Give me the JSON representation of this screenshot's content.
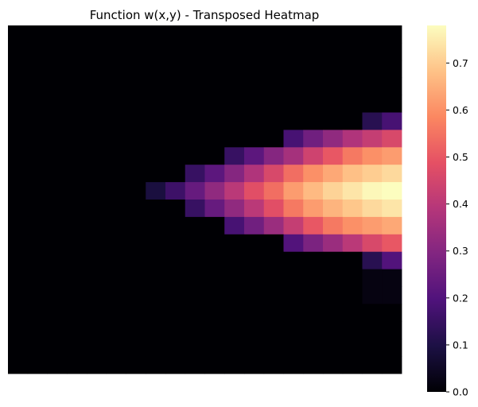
{
  "chart_data": {
    "type": "heatmap",
    "title": "Function w(x,y) - Transposed Heatmap",
    "xlabel": "",
    "ylabel": "",
    "colormap": "magma",
    "vmin": 0.0,
    "vmax": 0.78,
    "grid": false,
    "colorbar": {
      "position": "right",
      "ticks": [
        0.0,
        0.1,
        0.2,
        0.3,
        0.4,
        0.5,
        0.6,
        0.7
      ],
      "tick_labels": [
        "0.0",
        "0.1",
        "0.2",
        "0.3",
        "0.4",
        "0.5",
        "0.6",
        "0.7"
      ]
    },
    "n_rows": 20,
    "n_cols": 20,
    "values": [
      [
        0.0,
        0.0,
        0.0,
        0.0,
        0.0,
        0.0,
        0.0,
        0.0,
        0.0,
        0.0,
        0.0,
        0.0,
        0.0,
        0.0,
        0.0,
        0.0,
        0.0,
        0.0,
        0.0,
        0.0
      ],
      [
        0.0,
        0.0,
        0.0,
        0.0,
        0.0,
        0.0,
        0.0,
        0.0,
        0.0,
        0.0,
        0.0,
        0.0,
        0.0,
        0.0,
        0.0,
        0.0,
        0.0,
        0.0,
        0.0,
        0.0
      ],
      [
        0.0,
        0.0,
        0.0,
        0.0,
        0.0,
        0.0,
        0.0,
        0.0,
        0.0,
        0.0,
        0.0,
        0.0,
        0.0,
        0.0,
        0.0,
        0.0,
        0.0,
        0.0,
        0.0,
        0.0
      ],
      [
        0.0,
        0.0,
        0.0,
        0.0,
        0.0,
        0.0,
        0.0,
        0.0,
        0.0,
        0.0,
        0.0,
        0.0,
        0.0,
        0.0,
        0.0,
        0.0,
        0.0,
        0.0,
        0.0,
        0.0
      ],
      [
        0.0,
        0.0,
        0.0,
        0.0,
        0.0,
        0.0,
        0.0,
        0.0,
        0.0,
        0.0,
        0.0,
        0.0,
        0.0,
        0.0,
        0.0,
        0.0,
        0.0,
        0.0,
        0.0,
        0.0
      ],
      [
        0.0,
        0.0,
        0.0,
        0.0,
        0.0,
        0.0,
        0.0,
        0.0,
        0.0,
        0.0,
        0.0,
        0.0,
        0.0,
        0.0,
        0.0,
        0.0,
        0.0,
        0.0,
        0.12,
        0.18
      ],
      [
        0.0,
        0.0,
        0.0,
        0.0,
        0.0,
        0.0,
        0.0,
        0.0,
        0.0,
        0.0,
        0.0,
        0.0,
        0.0,
        0.0,
        0.18,
        0.26,
        0.32,
        0.38,
        0.42,
        0.46
      ],
      [
        0.0,
        0.0,
        0.0,
        0.0,
        0.0,
        0.0,
        0.0,
        0.0,
        0.0,
        0.0,
        0.0,
        0.15,
        0.22,
        0.3,
        0.36,
        0.44,
        0.5,
        0.56,
        0.6,
        0.62
      ],
      [
        0.0,
        0.0,
        0.0,
        0.0,
        0.0,
        0.0,
        0.0,
        0.0,
        0.0,
        0.15,
        0.22,
        0.3,
        0.38,
        0.46,
        0.54,
        0.6,
        0.64,
        0.68,
        0.7,
        0.72
      ],
      [
        0.0,
        0.0,
        0.0,
        0.0,
        0.0,
        0.0,
        0.0,
        0.09,
        0.16,
        0.24,
        0.32,
        0.4,
        0.48,
        0.54,
        0.62,
        0.67,
        0.71,
        0.74,
        0.77,
        0.78
      ],
      [
        0.0,
        0.0,
        0.0,
        0.0,
        0.0,
        0.0,
        0.0,
        0.0,
        0.0,
        0.15,
        0.24,
        0.32,
        0.4,
        0.48,
        0.56,
        0.62,
        0.66,
        0.69,
        0.72,
        0.74
      ],
      [
        0.0,
        0.0,
        0.0,
        0.0,
        0.0,
        0.0,
        0.0,
        0.0,
        0.0,
        0.0,
        0.0,
        0.18,
        0.26,
        0.34,
        0.42,
        0.5,
        0.56,
        0.6,
        0.62,
        0.64
      ],
      [
        0.0,
        0.0,
        0.0,
        0.0,
        0.0,
        0.0,
        0.0,
        0.0,
        0.0,
        0.0,
        0.0,
        0.0,
        0.0,
        0.0,
        0.2,
        0.28,
        0.34,
        0.4,
        0.46,
        0.5
      ],
      [
        0.0,
        0.0,
        0.0,
        0.0,
        0.0,
        0.0,
        0.0,
        0.0,
        0.0,
        0.0,
        0.0,
        0.0,
        0.0,
        0.0,
        0.0,
        0.0,
        0.0,
        0.0,
        0.12,
        0.2
      ],
      [
        0.0,
        0.0,
        0.0,
        0.0,
        0.0,
        0.0,
        0.0,
        0.0,
        0.0,
        0.0,
        0.0,
        0.0,
        0.0,
        0.0,
        0.0,
        0.0,
        0.0,
        0.0,
        0.02,
        0.02
      ],
      [
        0.0,
        0.0,
        0.0,
        0.0,
        0.0,
        0.0,
        0.0,
        0.0,
        0.0,
        0.0,
        0.0,
        0.0,
        0.0,
        0.0,
        0.0,
        0.0,
        0.0,
        0.0,
        0.02,
        0.02
      ],
      [
        0.0,
        0.0,
        0.0,
        0.0,
        0.0,
        0.0,
        0.0,
        0.0,
        0.0,
        0.0,
        0.0,
        0.0,
        0.0,
        0.0,
        0.0,
        0.0,
        0.0,
        0.0,
        0.0,
        0.0
      ],
      [
        0.0,
        0.0,
        0.0,
        0.0,
        0.0,
        0.0,
        0.0,
        0.0,
        0.0,
        0.0,
        0.0,
        0.0,
        0.0,
        0.0,
        0.0,
        0.0,
        0.0,
        0.0,
        0.0,
        0.0
      ],
      [
        0.0,
        0.0,
        0.0,
        0.0,
        0.0,
        0.0,
        0.0,
        0.0,
        0.0,
        0.0,
        0.0,
        0.0,
        0.0,
        0.0,
        0.0,
        0.0,
        0.0,
        0.0,
        0.0,
        0.0
      ],
      [
        0.0,
        0.0,
        0.0,
        0.0,
        0.0,
        0.0,
        0.0,
        0.0,
        0.0,
        0.0,
        0.0,
        0.0,
        0.0,
        0.0,
        0.0,
        0.0,
        0.0,
        0.0,
        0.0,
        0.0
      ]
    ]
  }
}
